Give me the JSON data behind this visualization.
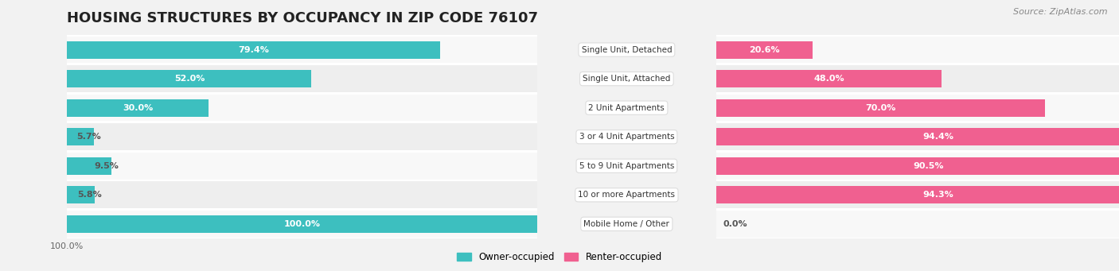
{
  "title": "HOUSING STRUCTURES BY OCCUPANCY IN ZIP CODE 76107",
  "source": "Source: ZipAtlas.com",
  "categories": [
    "Single Unit, Detached",
    "Single Unit, Attached",
    "2 Unit Apartments",
    "3 or 4 Unit Apartments",
    "5 to 9 Unit Apartments",
    "10 or more Apartments",
    "Mobile Home / Other"
  ],
  "owner_pct": [
    79.4,
    52.0,
    30.0,
    5.7,
    9.5,
    5.8,
    100.0
  ],
  "renter_pct": [
    20.6,
    48.0,
    70.0,
    94.4,
    90.5,
    94.3,
    0.0
  ],
  "owner_color": "#3dbfbf",
  "owner_color_light": "#88d8d8",
  "renter_color": "#f06090",
  "renter_color_light": "#f8b8cc",
  "owner_label": "Owner-occupied",
  "renter_label": "Renter-occupied",
  "bg_color": "#f2f2f2",
  "row_colors": [
    "#f8f8f8",
    "#eeeeee"
  ],
  "title_fontsize": 13,
  "bar_height": 0.6,
  "xlim": [
    0,
    100
  ]
}
